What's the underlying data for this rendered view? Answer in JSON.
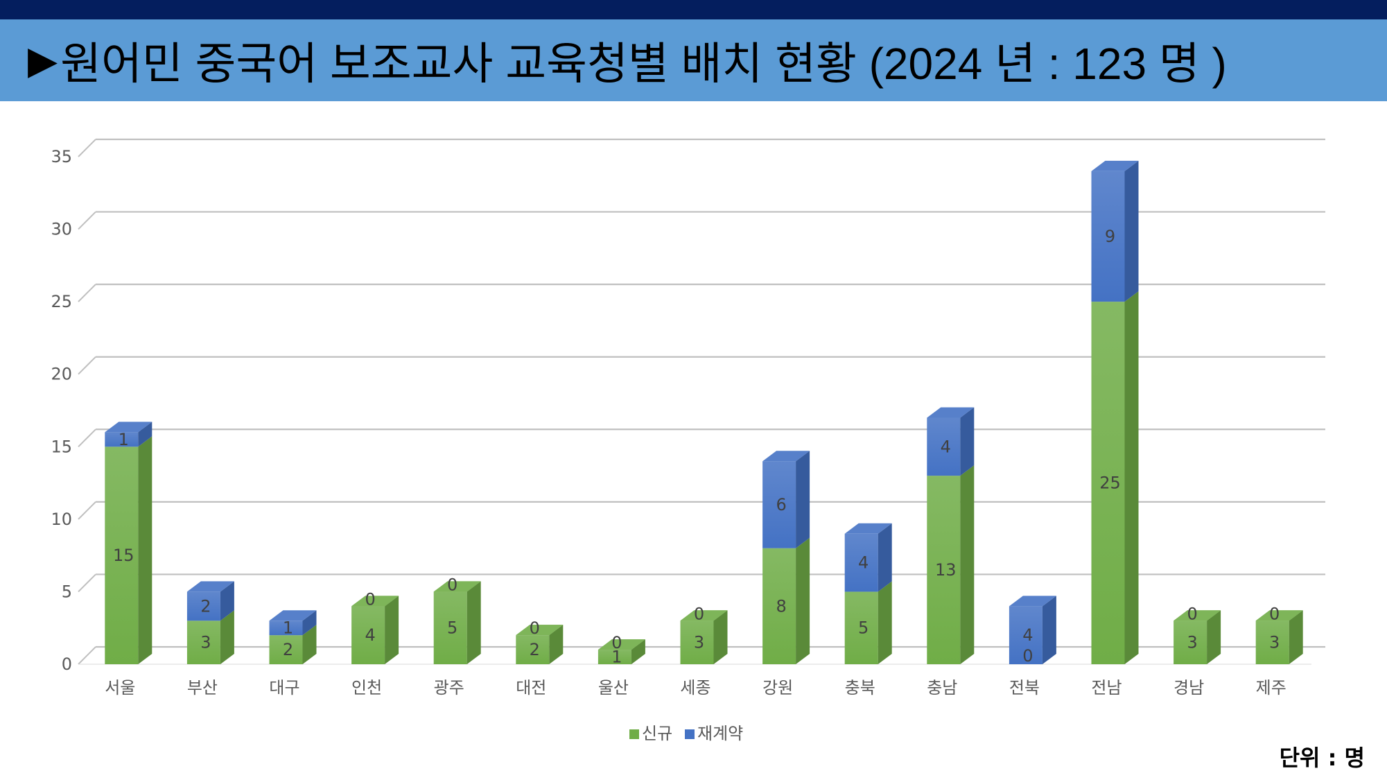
{
  "slide": {
    "title_marker": "▶",
    "title": "원어민 중국어 보조교사 교육청별 배치 현황 (2024 년 : 123 명 )",
    "unit_label": "단위 :  명"
  },
  "colors": {
    "top_strip": "#041e5e",
    "title_bar": "#5b9bd5",
    "series_new": "#70ad47",
    "series_renewal": "#4472c4"
  },
  "chart_data": {
    "type": "bar",
    "stacked": true,
    "three_d": true,
    "title": "",
    "xlabel": "",
    "ylabel": "",
    "ylim": [
      0,
      35
    ],
    "yticks": [
      0,
      5,
      10,
      15,
      20,
      25,
      30,
      35
    ],
    "grid": true,
    "legend_position": "bottom",
    "categories": [
      "서울",
      "부산",
      "대구",
      "인천",
      "광주",
      "대전",
      "울산",
      "세종",
      "강원",
      "충북",
      "충남",
      "전북",
      "전남",
      "경남",
      "제주"
    ],
    "series": [
      {
        "name": "신규",
        "color": "#70ad47",
        "values": [
          15,
          3,
          2,
          4,
          5,
          2,
          1,
          3,
          8,
          5,
          13,
          0,
          25,
          3,
          3
        ]
      },
      {
        "name": "재계약",
        "color": "#4472c4",
        "values": [
          1,
          2,
          1,
          0,
          0,
          0,
          0,
          0,
          6,
          4,
          4,
          4,
          9,
          0,
          0
        ]
      }
    ]
  }
}
